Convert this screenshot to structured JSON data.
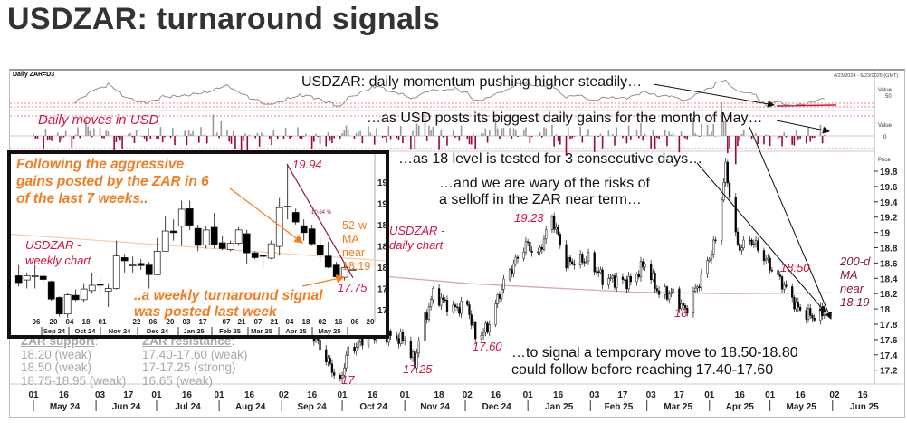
{
  "title": "USDZAR: turnaround signals",
  "panel_label": "Daily ZAR=D3",
  "date_range": "4/23/2024 - 6/23/2025 (GMT)",
  "annotations": {
    "momentum": "USDZAR: daily momentum pushing higher steadily…",
    "daily_moves": "Daily moves in USD",
    "usd_gains": "…as USD posts its biggest daily gains for the month of May…",
    "level18": "…as 18 level is tested for 3 consecutive days…",
    "wary1": "…and we are wary of the risks of",
    "wary2": "a selloff in the ZAR near term…",
    "daily_chart1": "USDZAR -",
    "daily_chart2": "daily chart",
    "signal1": "…to signal a temporary move to 18.50-18.80",
    "signal2": "could follow before reaching 17.40-17.60",
    "ma200": [
      "200-d",
      "MA",
      "near",
      "18.19"
    ],
    "levels": {
      "l1923": "19.23",
      "l1850": "18.50",
      "l18": "18",
      "l1760": "17.60",
      "l1725": "17.25",
      "l17": "17"
    }
  },
  "support_resistance": {
    "support_title": "ZAR support",
    "support": [
      "18.20 (weak)",
      "18.50 (weak)",
      "18.75-18.95 (weak)"
    ],
    "resistance_title": "ZAR resistance",
    "resistance": [
      "17.40-17.60 (weak)",
      "17-17.25 (strong)",
      "16.65 (weak)"
    ]
  },
  "inset": {
    "text1": [
      "Following the aggressive",
      "gains posted by the ZAR in 6",
      "of the last 7 weeks.."
    ],
    "text2": [
      "..a weekly turnaround signal",
      "was posted last week"
    ],
    "chart_label": [
      "USDZAR -",
      "weekly chart"
    ],
    "high_label": "19.94",
    "low_label": "17.75",
    "pct_label": "-10.64 %",
    "ma52": [
      "52-w",
      "MA",
      "near",
      "18.19"
    ],
    "day_ticks": [
      "06",
      "20",
      "04",
      "18",
      "01",
      "22",
      "06",
      "20",
      "03",
      "17",
      "07",
      "21",
      "07",
      "21",
      "04",
      "18",
      "02",
      "16",
      "06",
      "20"
    ],
    "months": [
      "Sep 24",
      "Oct 24",
      "Nov 24",
      "Dec 24",
      "Jan 25",
      "Feb 25",
      "Mar 25",
      "Apr 25",
      "May 25"
    ],
    "price_ticks": [
      "19.6",
      "19.2",
      "18.8",
      "18.4",
      "18",
      "17.6",
      "17.2"
    ]
  },
  "colors": {
    "bear": "#000000",
    "bull": "#ffffff",
    "down_bar": "#9b0a30",
    "up_bar": "#9a9a9a",
    "annot": "#d8123e",
    "orange": "#f57c1f",
    "ma200": "#d9a6ae"
  },
  "chart_data": [
    {
      "type": "candlestick",
      "title": "USDZAR daily",
      "yaxis_label": "Price",
      "ylim": [
        17.0,
        19.9
      ],
      "y_ticks": [
        "19.8",
        "19.6",
        "19.4",
        "19.2",
        "19",
        "18.8",
        "18.6",
        "18.4",
        "18.2",
        "18",
        "17.8",
        "17.6",
        "17.4",
        "17.2"
      ],
      "x_start": "2024-05-01",
      "keypoints": [
        [
          "2024-05-01",
          18.75
        ],
        [
          "2024-05-10",
          18.45
        ],
        [
          "2024-05-22",
          18.1
        ],
        [
          "2024-05-31",
          18.8
        ],
        [
          "2024-06-07",
          18.95
        ],
        [
          "2024-06-14",
          18.3
        ],
        [
          "2024-06-28",
          18.2
        ],
        [
          "2024-07-15",
          18.1
        ],
        [
          "2024-07-26",
          18.3
        ],
        [
          "2024-08-05",
          18.9
        ],
        [
          "2024-08-15",
          18.1
        ],
        [
          "2024-08-30",
          17.8
        ],
        [
          "2024-09-11",
          17.9
        ],
        [
          "2024-09-20",
          17.5
        ],
        [
          "2024-09-30",
          17.02
        ],
        [
          "2024-10-03",
          17.4
        ],
        [
          "2024-10-15",
          17.7
        ],
        [
          "2024-11-01",
          17.6
        ],
        [
          "2024-11-06",
          17.28
        ],
        [
          "2024-11-08",
          17.6
        ],
        [
          "2024-11-15",
          18.2
        ],
        [
          "2024-11-25",
          18.0
        ],
        [
          "2024-12-02",
          18.05
        ],
        [
          "2024-12-06",
          17.63
        ],
        [
          "2024-12-12",
          17.75
        ],
        [
          "2024-12-20",
          18.35
        ],
        [
          "2024-12-31",
          18.85
        ],
        [
          "2025-01-06",
          18.7
        ],
        [
          "2025-01-13",
          19.2
        ],
        [
          "2025-01-20",
          18.6
        ],
        [
          "2025-01-31",
          18.65
        ],
        [
          "2025-02-07",
          18.4
        ],
        [
          "2025-02-21",
          18.35
        ],
        [
          "2025-02-28",
          18.6
        ],
        [
          "2025-03-07",
          18.2
        ],
        [
          "2025-03-14",
          18.2
        ],
        [
          "2025-03-20",
          17.98
        ],
        [
          "2025-03-28",
          18.4
        ],
        [
          "2025-04-04",
          18.9
        ],
        [
          "2025-04-09",
          19.85
        ],
        [
          "2025-04-15",
          18.8
        ],
        [
          "2025-04-22",
          18.9
        ],
        [
          "2025-04-30",
          18.6
        ],
        [
          "2025-05-08",
          18.3
        ],
        [
          "2025-05-15",
          18.0
        ],
        [
          "2025-05-22",
          17.9
        ],
        [
          "2025-05-28",
          17.95
        ]
      ],
      "ma200_level": 18.19,
      "day_ticks": [
        [
          "2024-05-01",
          "01"
        ],
        [
          "2024-05-16",
          "16"
        ],
        [
          "2024-06-03",
          "03"
        ],
        [
          "2024-06-17",
          "17"
        ],
        [
          "2024-07-01",
          "01"
        ],
        [
          "2024-07-16",
          "16"
        ],
        [
          "2024-08-01",
          "01"
        ],
        [
          "2024-08-16",
          "16"
        ],
        [
          "2024-09-02",
          "02"
        ],
        [
          "2024-09-16",
          "16"
        ],
        [
          "2024-10-01",
          "01"
        ],
        [
          "2024-10-16",
          "16"
        ],
        [
          "2024-11-01",
          "01"
        ],
        [
          "2024-11-18",
          "18"
        ],
        [
          "2024-12-02",
          "02"
        ],
        [
          "2024-12-16",
          "16"
        ],
        [
          "2025-01-01",
          "01"
        ],
        [
          "2025-01-16",
          "16"
        ],
        [
          "2025-02-03",
          "03"
        ],
        [
          "2025-02-17",
          "17"
        ],
        [
          "2025-03-03",
          "03"
        ],
        [
          "2025-03-17",
          "17"
        ],
        [
          "2025-04-01",
          "01"
        ],
        [
          "2025-04-16",
          "16"
        ],
        [
          "2025-05-01",
          "01"
        ],
        [
          "2025-05-16",
          "16"
        ],
        [
          "2025-06-02",
          "02"
        ],
        [
          "2025-06-16",
          "16"
        ]
      ],
      "months": [
        [
          "2024-05-01",
          "May 24"
        ],
        [
          "2024-06-01",
          "Jun 24"
        ],
        [
          "2024-07-01",
          "Jul 24"
        ],
        [
          "2024-08-01",
          "Aug 24"
        ],
        [
          "2024-09-01",
          "Sep 24"
        ],
        [
          "2024-10-01",
          "Oct 24"
        ],
        [
          "2024-11-01",
          "Nov 24"
        ],
        [
          "2024-12-01",
          "Dec 24"
        ],
        [
          "2025-01-01",
          "Jan 25"
        ],
        [
          "2025-02-01",
          "Feb 25"
        ],
        [
          "2025-03-01",
          "Mar 25"
        ],
        [
          "2025-04-01",
          "Apr 25"
        ],
        [
          "2025-05-01",
          "May 25"
        ],
        [
          "2025-06-01",
          "Jun 25"
        ]
      ]
    },
    {
      "type": "candlestick",
      "title": "USDZAR weekly",
      "ylim": [
        17.0,
        20.0
      ],
      "ohlc": [
        [
          17.84,
          18.04,
          17.64,
          17.71
        ],
        [
          17.76,
          17.9,
          17.6,
          17.84
        ],
        [
          17.84,
          18.04,
          17.6,
          17.84
        ],
        [
          17.83,
          17.9,
          17.68,
          17.77
        ],
        [
          17.73,
          17.75,
          17.37,
          17.4
        ],
        [
          17.43,
          17.45,
          17.07,
          17.12
        ],
        [
          17.12,
          17.52,
          17.05,
          17.48
        ],
        [
          17.47,
          17.58,
          17.36,
          17.39
        ],
        [
          17.39,
          17.7,
          17.35,
          17.59
        ],
        [
          17.56,
          17.9,
          17.5,
          17.66
        ],
        [
          17.68,
          17.82,
          17.5,
          17.66
        ],
        [
          17.55,
          17.7,
          17.25,
          17.6
        ],
        [
          17.6,
          18.5,
          17.58,
          18.21
        ],
        [
          18.18,
          18.25,
          17.9,
          18.12
        ],
        [
          18.04,
          18.2,
          17.9,
          18.04
        ],
        [
          18.07,
          18.15,
          17.95,
          18.03
        ],
        [
          18.04,
          18.1,
          17.6,
          17.86
        ],
        [
          17.86,
          18.55,
          17.85,
          18.3
        ],
        [
          18.3,
          18.95,
          18.3,
          18.68
        ],
        [
          18.68,
          18.9,
          18.5,
          18.65
        ],
        [
          18.77,
          19.25,
          18.4,
          19.09
        ],
        [
          19.1,
          19.25,
          18.7,
          18.79
        ],
        [
          18.73,
          18.8,
          18.3,
          18.41
        ],
        [
          18.42,
          18.78,
          18.35,
          18.7
        ],
        [
          18.75,
          19.02,
          18.35,
          18.43
        ],
        [
          18.46,
          18.6,
          18.32,
          18.35
        ],
        [
          18.33,
          18.5,
          18.3,
          18.45
        ],
        [
          18.45,
          18.75,
          18.4,
          18.7
        ],
        [
          18.63,
          18.7,
          18.05,
          18.27
        ],
        [
          18.27,
          18.3,
          18.15,
          18.18
        ],
        [
          18.22,
          18.25,
          18.0,
          18.21
        ],
        [
          18.17,
          18.5,
          18.15,
          18.44
        ],
        [
          18.39,
          19.3,
          18.22,
          19.12
        ],
        [
          19.14,
          19.94,
          18.9,
          19.15
        ],
        [
          19.03,
          19.1,
          18.8,
          18.85
        ],
        [
          18.78,
          18.9,
          18.5,
          18.65
        ],
        [
          18.72,
          18.8,
          18.4,
          18.44
        ],
        [
          18.41,
          18.55,
          18.1,
          18.24
        ],
        [
          18.21,
          18.48,
          17.98,
          18.0
        ],
        [
          18.04,
          18.1,
          17.78,
          17.82
        ],
        [
          17.81,
          18.08,
          17.75,
          17.99
        ],
        [
          17.96,
          17.98,
          17.94,
          17.96
        ]
      ],
      "ma52_level": 18.19
    }
  ]
}
